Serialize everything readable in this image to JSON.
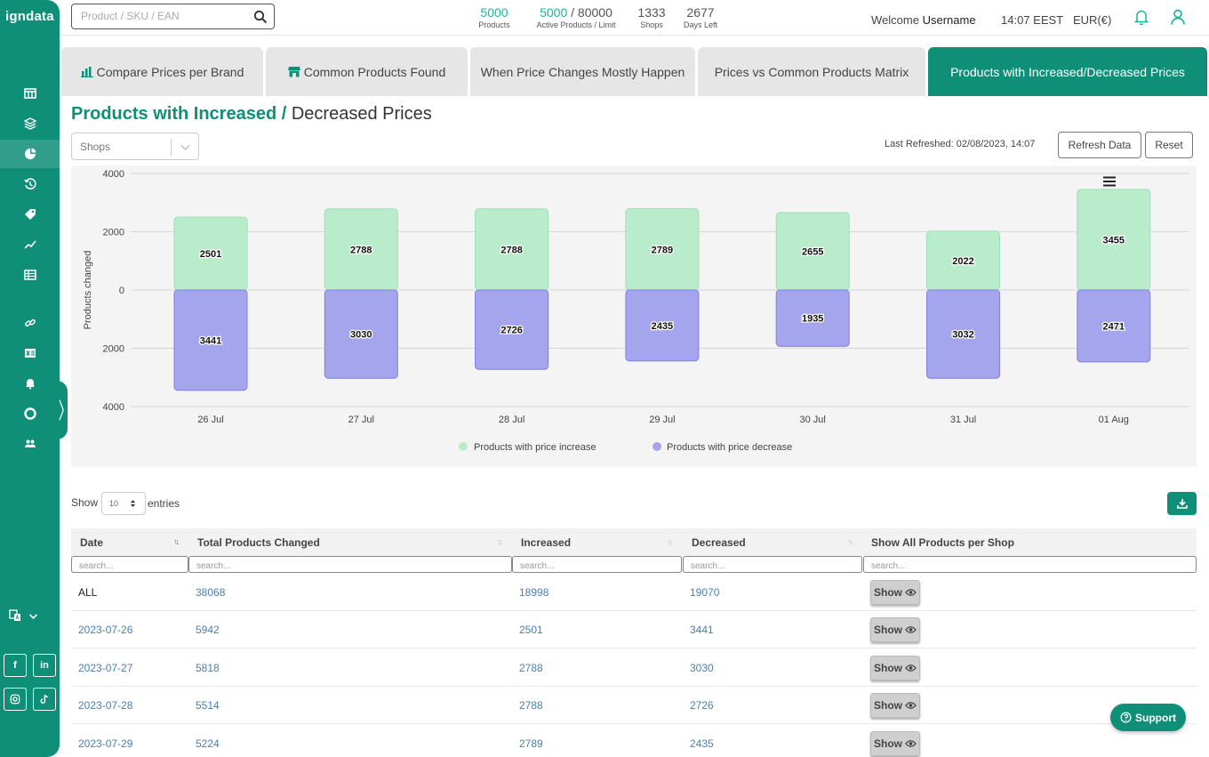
{
  "app": {
    "logo": "igndata"
  },
  "topbar": {
    "search_placeholder": "Product / SKU / EAN",
    "stats": [
      {
        "value": "5000",
        "label": "Products"
      },
      {
        "value": "5000",
        "limit": "/ 80000",
        "label": "Active Products / Limit"
      },
      {
        "value": "1333",
        "label": "Shops"
      },
      {
        "value": "2677",
        "label": "Days Left"
      }
    ],
    "welcome_text": "Welcome",
    "username": "Username",
    "time": "14:07 EEST",
    "currency": "EUR(€)"
  },
  "tabs": [
    {
      "label": "Compare Prices per Brand",
      "icon": "bar-chart-icon"
    },
    {
      "label": "Common Products Found",
      "icon": "store-icon"
    },
    {
      "label": "When Price Changes Mostly Happen"
    },
    {
      "label": "Prices vs Common Products Matrix"
    },
    {
      "label": "Products with Increased/Decreased Prices",
      "active": true
    }
  ],
  "page": {
    "title_main": "Products with Increased /",
    "title_rest": "Decreased Prices",
    "shops_placeholder": "Shops",
    "last_refreshed": "Last Refreshed: 02/08/2023, 14:07",
    "refresh_label": "Refresh Data",
    "reset_label": "Reset"
  },
  "chart_data": {
    "type": "bar",
    "ylabel": "Products changed",
    "categories": [
      "26 Jul",
      "27 Jul",
      "28 Jul",
      "29 Jul",
      "30 Jul",
      "31 Jul",
      "01 Aug"
    ],
    "y_ticks": [
      "4000",
      "2000",
      "0",
      "2000",
      "4000"
    ],
    "ylim": [
      -4000,
      4000
    ],
    "grid": true,
    "legend_position": "bottom-center",
    "series": [
      {
        "name": "Products with price increase",
        "values": [
          2501,
          2788,
          2788,
          2789,
          2655,
          2022,
          3455
        ],
        "color": "#b8eccb",
        "border": "#9ddfb5"
      },
      {
        "name": "Products with price decrease",
        "values": [
          3441,
          3030,
          2726,
          2435,
          1935,
          3032,
          2471
        ],
        "color": "#a5a5ee",
        "border": "#7f7fe0"
      }
    ]
  },
  "table": {
    "show_label": "Show",
    "entries_value": "10",
    "entries_label": "entries",
    "columns": [
      "Date",
      "Total Products Changed",
      "Increased",
      "Decreased",
      "Show All Products per Shop"
    ],
    "search_placeholder": "search...",
    "show_button_label": "Show",
    "rows": [
      {
        "date": "ALL",
        "total": "38068",
        "increased": "18998",
        "decreased": "19070"
      },
      {
        "date": "2023-07-26",
        "total": "5942",
        "increased": "2501",
        "decreased": "3441"
      },
      {
        "date": "2023-07-27",
        "total": "5818",
        "increased": "2788",
        "decreased": "3030"
      },
      {
        "date": "2023-07-28",
        "total": "5514",
        "increased": "2788",
        "decreased": "2726"
      },
      {
        "date": "2023-07-29",
        "total": "5224",
        "increased": "2789",
        "decreased": "2435"
      }
    ]
  },
  "support_label": "Support",
  "colors": {
    "brand": "#0f8f78",
    "accent": "#19b59a",
    "link": "#4a7fb0"
  }
}
